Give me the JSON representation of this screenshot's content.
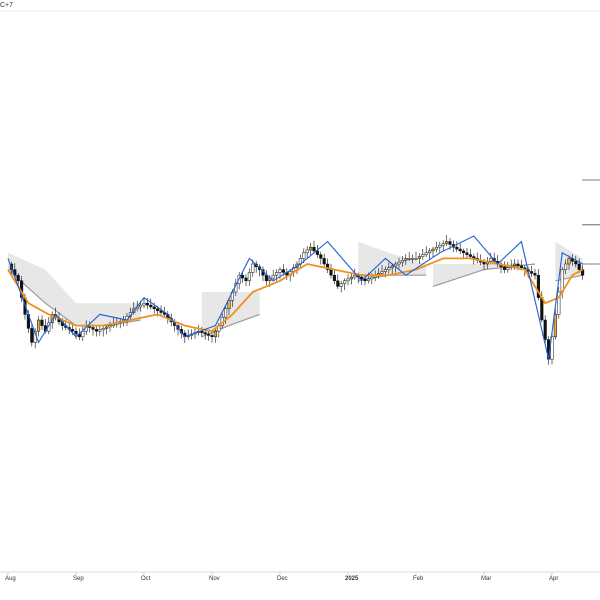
{
  "header": {
    "symbol_fragment": "C+7"
  },
  "colors": {
    "bull_fill": "#ffffff",
    "bear_fill": "#111111",
    "bull_highlight": "#e0b040",
    "wick": "#111111",
    "moving_average": "#f0901e",
    "zigzag": "#1f5fd6",
    "band_fill": "#e7e7e7",
    "band_edge": "#9a9a9a",
    "grid": "#eeeeee",
    "axis_line": "#dddddd"
  },
  "chart_data": {
    "type": "candlestick",
    "title": "",
    "xlabel": "",
    "ylabel": "",
    "grid": false,
    "ylim": [
      0,
      100
    ],
    "x_tick_labels": [
      {
        "label": "Aug",
        "month_index": 0
      },
      {
        "label": "Sep",
        "month_index": 1
      },
      {
        "label": "Oct",
        "month_index": 2
      },
      {
        "label": "Nov",
        "month_index": 3
      },
      {
        "label": "Dec",
        "month_index": 4
      },
      {
        "label": "2025",
        "month_index": 5,
        "bold": true
      },
      {
        "label": "Feb",
        "month_index": 6
      },
      {
        "label": "Mar",
        "month_index": 7
      },
      {
        "label": "Apr",
        "month_index": 8
      }
    ],
    "right_markers": [
      70,
      62,
      55
    ],
    "price_path": [
      [
        0.0,
        55
      ],
      [
        0.15,
        52
      ],
      [
        0.25,
        46
      ],
      [
        0.35,
        41
      ],
      [
        0.45,
        45
      ],
      [
        0.55,
        43
      ],
      [
        0.65,
        46
      ],
      [
        0.8,
        44
      ],
      [
        0.95,
        43
      ],
      [
        1.05,
        42
      ],
      [
        1.15,
        44
      ],
      [
        1.3,
        43
      ],
      [
        1.5,
        44
      ],
      [
        1.7,
        45
      ],
      [
        1.85,
        47
      ],
      [
        2.0,
        48
      ],
      [
        2.15,
        47
      ],
      [
        2.3,
        46
      ],
      [
        2.45,
        44
      ],
      [
        2.6,
        42
      ],
      [
        2.8,
        43
      ],
      [
        3.0,
        42
      ],
      [
        3.1,
        44
      ],
      [
        3.2,
        47
      ],
      [
        3.3,
        50
      ],
      [
        3.4,
        53
      ],
      [
        3.5,
        52
      ],
      [
        3.6,
        55
      ],
      [
        3.7,
        54
      ],
      [
        3.8,
        52
      ],
      [
        3.9,
        53
      ],
      [
        4.0,
        54
      ],
      [
        4.1,
        53
      ],
      [
        4.25,
        55
      ],
      [
        4.35,
        57
      ],
      [
        4.45,
        58
      ],
      [
        4.6,
        56
      ],
      [
        4.7,
        54
      ],
      [
        4.85,
        51
      ],
      [
        4.95,
        52
      ],
      [
        5.1,
        53
      ],
      [
        5.25,
        52
      ],
      [
        5.4,
        53
      ],
      [
        5.55,
        54
      ],
      [
        5.7,
        55
      ],
      [
        5.85,
        56
      ],
      [
        6.0,
        56
      ],
      [
        6.15,
        57
      ],
      [
        6.3,
        58
      ],
      [
        6.45,
        59
      ],
      [
        6.55,
        58
      ],
      [
        6.7,
        57
      ],
      [
        6.85,
        56
      ],
      [
        7.0,
        55
      ],
      [
        7.1,
        56
      ],
      [
        7.2,
        55
      ],
      [
        7.3,
        54
      ],
      [
        7.45,
        55
      ],
      [
        7.6,
        54
      ],
      [
        7.75,
        53
      ],
      [
        7.85,
        45
      ],
      [
        7.95,
        38
      ],
      [
        8.05,
        46
      ],
      [
        8.15,
        54
      ],
      [
        8.25,
        56
      ],
      [
        8.35,
        55
      ],
      [
        8.45,
        53
      ]
    ],
    "moving_average_path": [
      [
        0.0,
        54
      ],
      [
        0.3,
        48
      ],
      [
        0.6,
        46
      ],
      [
        1.0,
        44
      ],
      [
        1.4,
        44
      ],
      [
        1.8,
        45
      ],
      [
        2.2,
        46
      ],
      [
        2.6,
        44
      ],
      [
        3.0,
        43
      ],
      [
        3.3,
        46
      ],
      [
        3.6,
        50
      ],
      [
        4.0,
        52
      ],
      [
        4.4,
        55
      ],
      [
        4.8,
        54
      ],
      [
        5.2,
        53
      ],
      [
        5.6,
        53
      ],
      [
        6.0,
        54
      ],
      [
        6.4,
        56
      ],
      [
        6.8,
        56
      ],
      [
        7.2,
        55
      ],
      [
        7.6,
        54
      ],
      [
        7.9,
        48
      ],
      [
        8.1,
        49
      ],
      [
        8.3,
        53
      ],
      [
        8.45,
        54
      ]
    ],
    "zigzag_path": [
      [
        0.0,
        56
      ],
      [
        0.12,
        52
      ],
      [
        0.45,
        41
      ],
      [
        0.7,
        46
      ],
      [
        1.0,
        42
      ],
      [
        1.35,
        46
      ],
      [
        1.75,
        45
      ],
      [
        2.0,
        49
      ],
      [
        2.35,
        46
      ],
      [
        2.6,
        42
      ],
      [
        3.05,
        44
      ],
      [
        3.55,
        56
      ],
      [
        3.9,
        52
      ],
      [
        4.3,
        55
      ],
      [
        4.7,
        59
      ],
      [
        5.2,
        52
      ],
      [
        5.55,
        56
      ],
      [
        5.85,
        53
      ],
      [
        6.35,
        57
      ],
      [
        6.85,
        60
      ],
      [
        7.2,
        55
      ],
      [
        7.55,
        59
      ],
      [
        7.95,
        38
      ],
      [
        8.15,
        57
      ],
      [
        8.45,
        55
      ]
    ],
    "envelope_bands": [
      {
        "x": [
          0.0,
          0.55,
          1.0
        ],
        "upper": [
          57,
          54,
          48
        ],
        "lower": [
          54,
          48,
          44
        ]
      },
      {
        "x": [
          1.0,
          1.45,
          1.95
        ],
        "upper": [
          48,
          48,
          48
        ],
        "lower": [
          44,
          44,
          45
        ]
      },
      {
        "x": [
          2.85,
          3.25,
          3.7
        ],
        "upper": [
          50,
          50,
          50
        ],
        "lower": [
          42,
          44,
          46
        ]
      },
      {
        "x": [
          5.15,
          5.6,
          6.15
        ],
        "upper": [
          59,
          57,
          55
        ],
        "lower": [
          52,
          53,
          53
        ]
      },
      {
        "x": [
          6.25,
          7.0,
          7.75
        ],
        "upper": [
          55,
          55,
          55
        ],
        "lower": [
          51,
          54,
          55
        ]
      },
      {
        "x": [
          8.05,
          8.45
        ],
        "upper": [
          59,
          56
        ],
        "lower": [
          52,
          53
        ]
      }
    ]
  }
}
